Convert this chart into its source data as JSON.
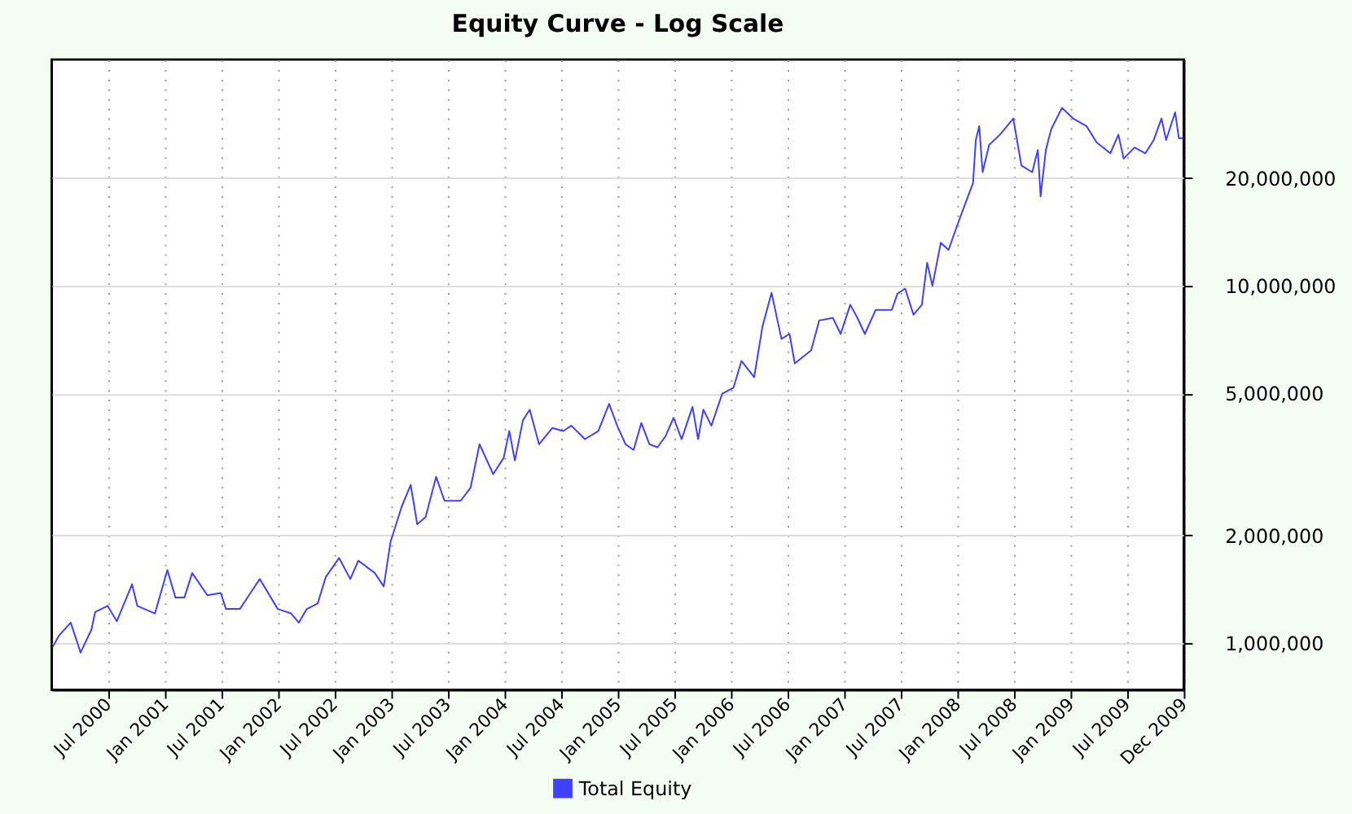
{
  "chart_data": {
    "type": "line",
    "title": "Equity Curve - Log Scale",
    "x": [
      "2000-01-04",
      "2000-01-25",
      "2000-03-02",
      "2000-04-03",
      "2000-05-08",
      "2000-05-20",
      "2000-06-29",
      "2000-07-29",
      "2000-09-16",
      "2000-10-03",
      "2000-11-29",
      "2001-01-08",
      "2001-02-03",
      "2001-03-04",
      "2001-03-29",
      "2001-05-17",
      "2001-06-29",
      "2001-07-16",
      "2001-08-30",
      "2001-10-03",
      "2001-11-02",
      "2001-12-30",
      "2002-02-11",
      "2002-03-08",
      "2002-04-03",
      "2002-05-08",
      "2002-06-03",
      "2002-07-16",
      "2002-08-21",
      "2002-09-16",
      "2002-11-08",
      "2002-12-07",
      "2002-12-29",
      "2003-02-03",
      "2003-03-04",
      "2003-03-25",
      "2003-04-21",
      "2003-05-25",
      "2003-06-21",
      "2003-08-12",
      "2003-09-13",
      "2003-10-12",
      "2003-11-25",
      "2003-12-29",
      "2004-01-16",
      "2004-02-03",
      "2004-02-29",
      "2004-03-22",
      "2004-04-21",
      "2004-06-03",
      "2004-07-08",
      "2004-08-03",
      "2004-09-16",
      "2004-10-29",
      "2004-12-03",
      "2004-12-29",
      "2005-01-25",
      "2005-02-20",
      "2005-03-17",
      "2005-04-12",
      "2005-05-08",
      "2005-06-03",
      "2005-06-29",
      "2005-07-25",
      "2005-08-29",
      "2005-09-16",
      "2005-10-03",
      "2005-10-29",
      "2005-12-03",
      "2006-01-08",
      "2006-02-03",
      "2006-03-16",
      "2006-04-12",
      "2006-05-11",
      "2006-06-12",
      "2006-07-08",
      "2006-07-25",
      "2006-09-16",
      "2006-10-12",
      "2006-11-25",
      "2006-12-20",
      "2007-01-20",
      "2007-02-12",
      "2007-03-08",
      "2007-04-12",
      "2007-06-03",
      "2007-06-21",
      "2007-07-16",
      "2007-08-12",
      "2007-09-08",
      "2007-09-25",
      "2007-10-12",
      "2007-11-08",
      "2007-12-03",
      "2007-12-29",
      "2008-01-25",
      "2008-02-20",
      "2008-02-29",
      "2008-03-11",
      "2008-03-22",
      "2008-04-12",
      "2008-05-17",
      "2008-06-29",
      "2008-07-25",
      "2008-08-29",
      "2008-09-16",
      "2008-09-25",
      "2008-10-12",
      "2008-10-29",
      "2008-12-03",
      "2009-01-08",
      "2009-02-20",
      "2009-03-25",
      "2009-05-08",
      "2009-06-03",
      "2009-06-20",
      "2009-07-25",
      "2009-08-29",
      "2009-09-25",
      "2009-10-20",
      "2009-11-04",
      "2009-12-03",
      "2009-12-15",
      "2009-12-29"
    ],
    "series": [
      {
        "name": "Total Equity",
        "color": "#4040ff",
        "values": [
          976000,
          1050000,
          1140000,
          940000,
          1090000,
          1220000,
          1270000,
          1150000,
          1460000,
          1270000,
          1210000,
          1600000,
          1340000,
          1340000,
          1570000,
          1360000,
          1380000,
          1245000,
          1245000,
          1380000,
          1510000,
          1245000,
          1210000,
          1140000,
          1245000,
          1290000,
          1530000,
          1730000,
          1510000,
          1700000,
          1570000,
          1440000,
          1920000,
          2410000,
          2770000,
          2150000,
          2250000,
          2920000,
          2500000,
          2500000,
          2720000,
          3600000,
          2970000,
          3300000,
          3920000,
          3240000,
          4200000,
          4500000,
          3600000,
          4000000,
          3920000,
          4060000,
          3720000,
          3920000,
          4670000,
          4060000,
          3600000,
          3470000,
          4130000,
          3600000,
          3530000,
          3790000,
          4270000,
          3720000,
          4580000,
          3720000,
          4500000,
          4060000,
          4990000,
          5180000,
          6160000,
          5550000,
          7710000,
          9560000,
          7100000,
          7330000,
          6060000,
          6600000,
          8000000,
          8130000,
          7330000,
          8850000,
          8130000,
          7330000,
          8560000,
          8560000,
          9500000,
          9820000,
          8300000,
          8850000,
          11600000,
          10000000,
          13200000,
          12600000,
          14600000,
          16900000,
          19400000,
          25600000,
          28000000,
          20800000,
          24800000,
          26500000,
          29400000,
          21700000,
          20800000,
          24000000,
          17800000,
          24000000,
          27400000,
          31500000,
          29400000,
          28000000,
          25200000,
          23500000,
          26500000,
          22700000,
          24400000,
          23500000,
          25600000,
          29400000,
          25600000,
          30600000,
          25900000,
          25900000
        ]
      }
    ],
    "xlim": [
      "2000-01-01",
      "2009-12-31"
    ],
    "xticks": [
      {
        "value": "2000-07-01",
        "label": "Jul 2000"
      },
      {
        "value": "2001-01-01",
        "label": "Jan 2001"
      },
      {
        "value": "2001-07-01",
        "label": "Jul 2001"
      },
      {
        "value": "2002-01-01",
        "label": "Jan 2002"
      },
      {
        "value": "2002-07-01",
        "label": "Jul 2002"
      },
      {
        "value": "2003-01-01",
        "label": "Jan 2003"
      },
      {
        "value": "2003-07-01",
        "label": "Jul 2003"
      },
      {
        "value": "2004-01-01",
        "label": "Jan 2004"
      },
      {
        "value": "2004-07-01",
        "label": "Jul 2004"
      },
      {
        "value": "2005-01-01",
        "label": "Jan 2005"
      },
      {
        "value": "2005-07-01",
        "label": "Jul 2005"
      },
      {
        "value": "2006-01-01",
        "label": "Jan 2006"
      },
      {
        "value": "2006-07-01",
        "label": "Jul 2006"
      },
      {
        "value": "2007-01-01",
        "label": "Jan 2007"
      },
      {
        "value": "2007-07-01",
        "label": "Jul 2007"
      },
      {
        "value": "2008-01-01",
        "label": "Jan 2008"
      },
      {
        "value": "2008-07-01",
        "label": "Jul 2008"
      },
      {
        "value": "2009-01-01",
        "label": "Jan 2009"
      },
      {
        "value": "2009-07-01",
        "label": "Jul 2009"
      },
      {
        "value": "2009-12-31",
        "label": "Dec 2009"
      }
    ],
    "ylim": [
      739000,
      43000000
    ],
    "yticks": [
      {
        "value": 1000000,
        "label": "1,000,000"
      },
      {
        "value": 2000000,
        "label": "2,000,000"
      },
      {
        "value": 5000000,
        "label": "5,000,000"
      },
      {
        "value": 10000000,
        "label": "10,000,000"
      },
      {
        "value": 20000000,
        "label": "20,000,000"
      }
    ],
    "log": "y",
    "grid": true,
    "legend": "bottom",
    "marker": "none",
    "line_style": "solid"
  }
}
